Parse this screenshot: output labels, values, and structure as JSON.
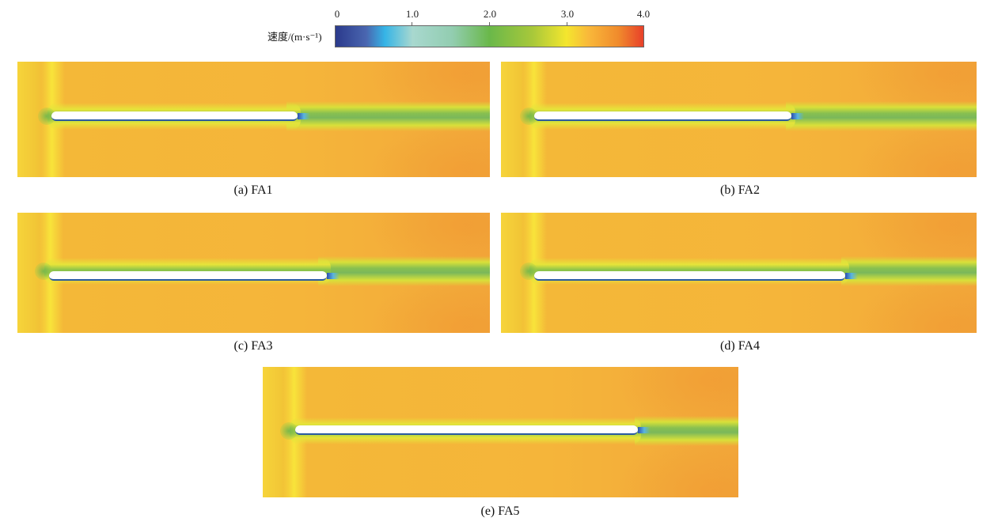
{
  "colorbar": {
    "label": "速度/(m·s⁻¹)",
    "ticks": [
      "0",
      "1.0",
      "2.0",
      "3.0",
      "4.0"
    ],
    "range": [
      0,
      4.0
    ],
    "colors": [
      "#2b3a8c",
      "#35b4e6",
      "#92cdb0",
      "#6ab84a",
      "#f4e62e",
      "#f08a2c",
      "#e8402a"
    ]
  },
  "panels": [
    {
      "caption": "(a) FA1"
    },
    {
      "caption": "(b) FA2"
    },
    {
      "caption": "(c) FA3"
    },
    {
      "caption": "(d) FA4"
    },
    {
      "caption": "(e) FA5"
    }
  ]
}
